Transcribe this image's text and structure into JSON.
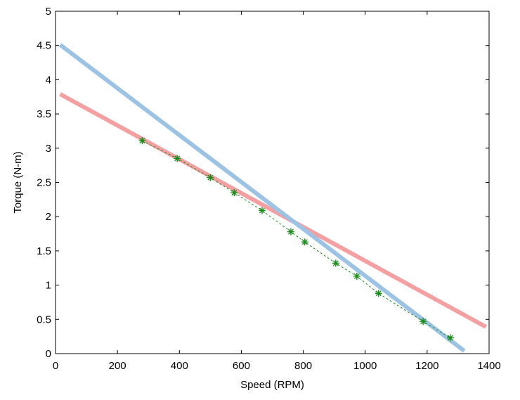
{
  "chart_data": {
    "type": "line",
    "title": "",
    "xlabel": "Speed (RPM)",
    "ylabel": "Torque (N-m)",
    "xlim": [
      0,
      1400
    ],
    "ylim": [
      0,
      5
    ],
    "x_ticks": [
      0,
      200,
      400,
      600,
      800,
      1000,
      1200,
      1400
    ],
    "y_ticks": [
      0,
      0.5,
      1,
      1.5,
      2,
      2.5,
      3,
      3.5,
      4,
      4.5,
      5
    ],
    "x_tick_labels": [
      "0",
      "200",
      "400",
      "600",
      "800",
      "1000",
      "1200",
      "1400"
    ],
    "y_tick_labels": [
      "0",
      "0.5",
      "1",
      "1.5",
      "2",
      "2.5",
      "3",
      "3.5",
      "4",
      "4.5",
      "5"
    ],
    "grid": false,
    "legend": null,
    "series": [
      {
        "style": "solid-thick",
        "color": "#f4a0a2",
        "x": [
          15,
          1390
        ],
        "y": [
          3.79,
          0.39
        ]
      },
      {
        "style": "solid-thick",
        "color": "#9cc3e4",
        "x": [
          15,
          1320
        ],
        "y": [
          4.51,
          0.04
        ]
      },
      {
        "style": "dashed-markers",
        "color": "#1a8c1a",
        "marker": "asterisk",
        "x": [
          280,
          393,
          500,
          577,
          667,
          760,
          805,
          905,
          973,
          1043,
          1187,
          1275
        ],
        "y": [
          3.11,
          2.85,
          2.57,
          2.35,
          2.09,
          1.78,
          1.63,
          1.32,
          1.13,
          0.88,
          0.47,
          0.23
        ]
      }
    ]
  }
}
